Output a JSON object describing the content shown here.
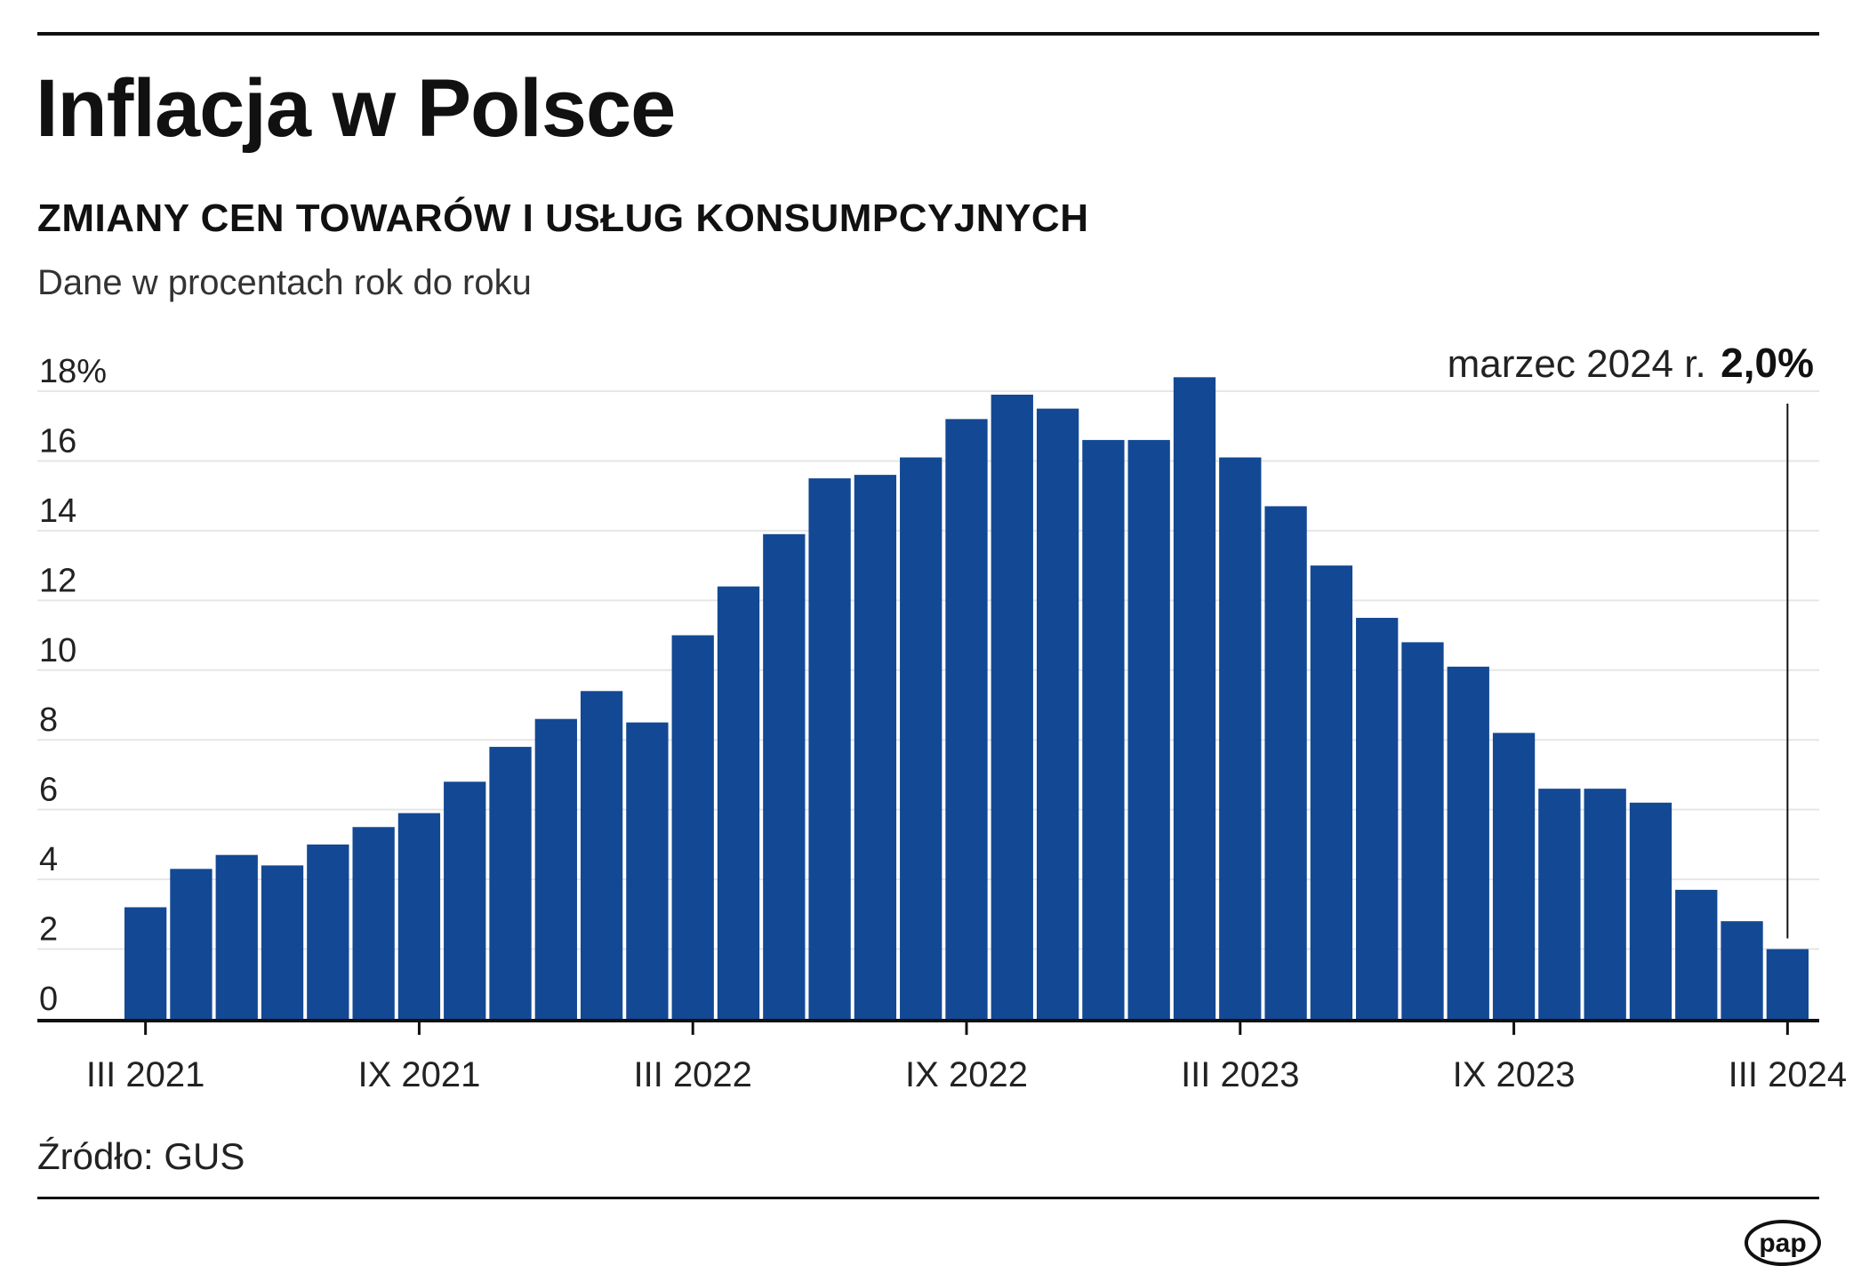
{
  "header": {
    "title": "Inflacja w Polsce",
    "subtitle": "ZMIANY CEN TOWARÓW I USŁUG KONSUMPCYJNYCH",
    "unit_note": "Dane w procentach rok do roku"
  },
  "footer": {
    "source": "Źródło: GUS",
    "logo_text": "pap"
  },
  "colors": {
    "bar": "#134894",
    "grid": "#e6e6e6",
    "axis": "#111111"
  },
  "chart_data": {
    "type": "bar",
    "categories": [
      "III 2021",
      "IV 2021",
      "V 2021",
      "VI 2021",
      "VII 2021",
      "VIII 2021",
      "IX 2021",
      "X 2021",
      "XI 2021",
      "XII 2021",
      "I 2022",
      "II 2022",
      "III 2022",
      "IV 2022",
      "V 2022",
      "VI 2022",
      "VII 2022",
      "VIII 2022",
      "IX 2022",
      "X 2022",
      "XI 2022",
      "XII 2022",
      "I 2023",
      "II 2023",
      "III 2023",
      "IV 2023",
      "V 2023",
      "VI 2023",
      "VII 2023",
      "VIII 2023",
      "IX 2023",
      "X 2023",
      "XI 2023",
      "XII 2023",
      "I 2024",
      "II 2024",
      "III 2024"
    ],
    "values": [
      3.2,
      4.3,
      4.7,
      4.4,
      5.0,
      5.5,
      5.9,
      6.8,
      7.8,
      8.6,
      9.4,
      8.5,
      11.0,
      12.4,
      13.9,
      15.5,
      15.6,
      16.1,
      17.2,
      17.9,
      17.5,
      16.6,
      16.6,
      18.4,
      16.1,
      14.7,
      13.0,
      11.5,
      10.8,
      10.1,
      8.2,
      6.6,
      6.6,
      6.2,
      3.7,
      2.8,
      2.0
    ],
    "x_tick_labels": [
      "III 2021",
      "IX 2021",
      "III 2022",
      "IX 2022",
      "III 2023",
      "IX 2023",
      "III 2024"
    ],
    "y_tick_labels": [
      "0",
      "2",
      "4",
      "6",
      "8",
      "10",
      "12",
      "14",
      "16",
      "18%"
    ],
    "ylim": [
      0,
      18
    ],
    "grid": true,
    "annotation": {
      "text": "marzec 2024 r.",
      "value": "2,0%",
      "category": "III 2024"
    }
  }
}
